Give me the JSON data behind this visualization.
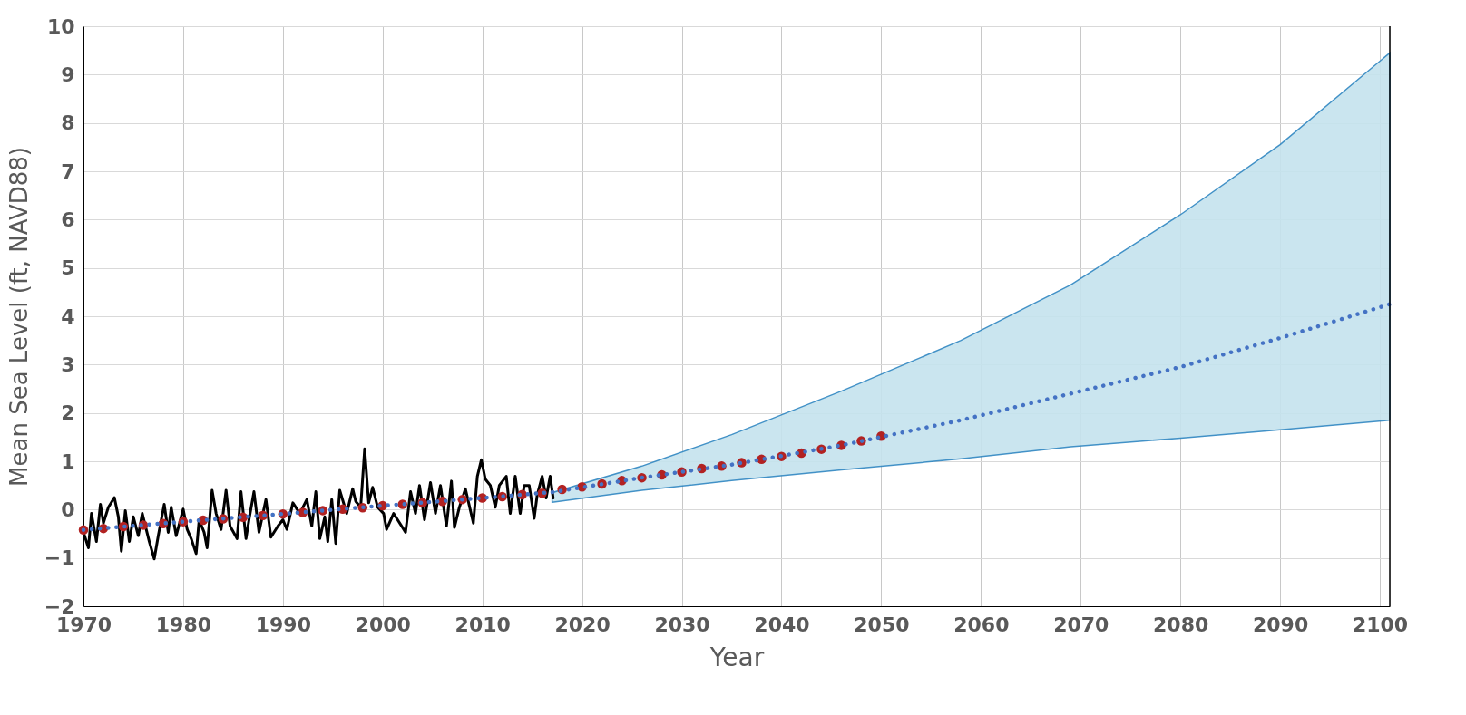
{
  "chart_data": {
    "type": "line",
    "xlabel": "Year",
    "ylabel": "Mean Sea Level (ft, NAVD88)",
    "xlim": [
      1970,
      2101
    ],
    "ylim": [
      -2,
      10
    ],
    "xticks": [
      1970,
      1980,
      1990,
      2000,
      2010,
      2020,
      2030,
      2040,
      2050,
      2060,
      2070,
      2080,
      2090,
      2100
    ],
    "yticks": [
      -2,
      -1,
      0,
      1,
      2,
      3,
      4,
      5,
      6,
      7,
      8,
      9,
      10
    ],
    "grid": true,
    "series": [
      {
        "color": "#000000",
        "marker": "none",
        "line_style": "solid",
        "x": [
          1970.0,
          1970.5,
          1970.8,
          1971.3,
          1971.7,
          1972.0,
          1972.5,
          1973.1,
          1973.5,
          1973.8,
          1974.2,
          1974.6,
          1975.0,
          1975.5,
          1975.9,
          1976.6,
          1977.1,
          1977.5,
          1978.1,
          1978.5,
          1978.8,
          1979.3,
          1980.0,
          1980.4,
          1980.8,
          1981.3,
          1981.6,
          1982.1,
          1982.4,
          1982.9,
          1983.3,
          1983.8,
          1984.3,
          1984.7,
          1985.4,
          1985.8,
          1986.3,
          1986.6,
          1987.1,
          1987.6,
          1988.3,
          1988.8,
          1989.5,
          1990.0,
          1990.4,
          1991.0,
          1991.7,
          1992.4,
          1992.9,
          1993.3,
          1993.7,
          1994.2,
          1994.5,
          1994.9,
          1995.3,
          1995.7,
          1996.4,
          1997.0,
          1997.3,
          1997.8,
          1998.2,
          1998.6,
          1999.0,
          1999.5,
          2000.1,
          2000.4,
          2001.1,
          2001.5,
          2002.3,
          2002.8,
          2003.3,
          2003.7,
          2004.2,
          2004.8,
          2005.3,
          2005.8,
          2006.4,
          2006.9,
          2007.2,
          2007.7,
          2008.3,
          2009.1,
          2009.5,
          2009.9,
          2010.3,
          2010.8,
          2011.3,
          2011.7,
          2012.4,
          2012.8,
          2013.3,
          2013.8,
          2014.2,
          2014.7,
          2015.2,
          2015.5,
          2016.0,
          2016.4,
          2016.8,
          2017.1
        ],
        "values": [
          -0.47,
          -0.79,
          -0.08,
          -0.66,
          0.11,
          -0.28,
          0.05,
          0.25,
          -0.15,
          -0.86,
          -0.02,
          -0.66,
          -0.15,
          -0.54,
          -0.08,
          -0.66,
          -1.02,
          -0.54,
          0.11,
          -0.47,
          0.05,
          -0.54,
          0.01,
          -0.41,
          -0.6,
          -0.91,
          -0.21,
          -0.47,
          -0.79,
          0.4,
          -0.08,
          -0.41,
          0.4,
          -0.34,
          -0.6,
          0.37,
          -0.6,
          -0.21,
          0.37,
          -0.47,
          0.21,
          -0.57,
          -0.34,
          -0.21,
          -0.41,
          0.14,
          -0.08,
          0.21,
          -0.34,
          0.37,
          -0.6,
          -0.15,
          -0.66,
          0.21,
          -0.7,
          0.4,
          -0.08,
          0.43,
          0.17,
          0.05,
          1.26,
          0.14,
          0.46,
          0.05,
          -0.08,
          -0.41,
          -0.08,
          -0.21,
          -0.47,
          0.37,
          -0.08,
          0.5,
          -0.21,
          0.56,
          -0.08,
          0.5,
          -0.34,
          0.59,
          -0.37,
          0.05,
          0.43,
          -0.28,
          0.69,
          1.03,
          0.63,
          0.5,
          0.05,
          0.5,
          0.69,
          -0.08,
          0.69,
          -0.08,
          0.5,
          0.5,
          -0.18,
          0.3,
          0.69,
          0.24,
          0.69,
          0.24
        ]
      },
      {
        "type": "scatter",
        "color": "#b22222",
        "marker": "circle",
        "x": [
          1970,
          1972,
          1974,
          1976,
          1978,
          1980,
          1982,
          1984,
          1986,
          1988,
          1990,
          1992,
          1994,
          1996,
          1998,
          2000,
          2002,
          2004,
          2006,
          2008,
          2010,
          2012,
          2014,
          2016,
          2018,
          2020,
          2022,
          2024,
          2026,
          2028,
          2030,
          2032,
          2034,
          2036,
          2038,
          2040,
          2042,
          2044,
          2046,
          2048,
          2050
        ],
        "values": [
          -0.42,
          -0.39,
          -0.35,
          -0.32,
          -0.29,
          -0.25,
          -0.22,
          -0.19,
          -0.16,
          -0.12,
          -0.09,
          -0.06,
          -0.02,
          0.01,
          0.04,
          0.08,
          0.11,
          0.14,
          0.17,
          0.21,
          0.24,
          0.27,
          0.31,
          0.34,
          0.42,
          0.47,
          0.53,
          0.6,
          0.66,
          0.72,
          0.78,
          0.85,
          0.9,
          0.97,
          1.04,
          1.1,
          1.17,
          1.25,
          1.33,
          1.42,
          1.52
        ]
      },
      {
        "color": "#4472c4",
        "marker": "none",
        "line_style": "dotted",
        "x": [
          1970,
          1980,
          1990,
          2000,
          2010,
          2017,
          2026,
          2035,
          2046,
          2058,
          2069,
          2080,
          2090,
          2101
        ],
        "values": [
          -0.42,
          -0.25,
          -0.09,
          0.08,
          0.24,
          0.36,
          0.66,
          0.93,
          1.33,
          1.85,
          2.4,
          2.95,
          3.55,
          4.25
        ],
        "lower": [
          null,
          null,
          null,
          null,
          null,
          0.15,
          0.4,
          0.6,
          0.82,
          1.05,
          1.3,
          1.48,
          1.65,
          1.85
        ],
        "upper": [
          null,
          null,
          null,
          null,
          null,
          0.35,
          0.9,
          1.55,
          2.45,
          3.5,
          4.65,
          6.1,
          7.55,
          9.45
        ]
      }
    ]
  }
}
